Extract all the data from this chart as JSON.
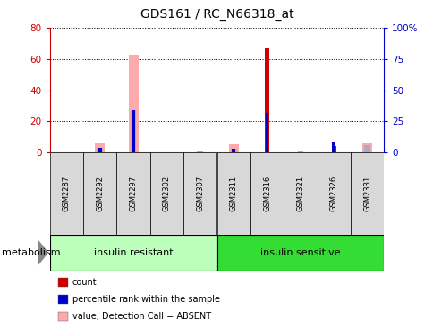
{
  "title": "GDS161 / RC_N66318_at",
  "samples": [
    "GSM2287",
    "GSM2292",
    "GSM2297",
    "GSM2302",
    "GSM2307",
    "GSM2311",
    "GSM2316",
    "GSM2321",
    "GSM2326",
    "GSM2331"
  ],
  "count_values": [
    0,
    0,
    0,
    0,
    0,
    0,
    67,
    0,
    4,
    0
  ],
  "rank_values": [
    0,
    4,
    34,
    0,
    0,
    3,
    32,
    0,
    8,
    0
  ],
  "absent_value_values": [
    0,
    6,
    63,
    0,
    0,
    5,
    0,
    0,
    0,
    6
  ],
  "absent_rank_values": [
    0,
    4,
    34,
    0,
    1,
    3,
    0,
    1,
    0,
    6
  ],
  "group1_label": "insulin resistant",
  "group2_label": "insulin sensitive",
  "ylim_left": [
    0,
    80
  ],
  "ylim_right": [
    0,
    100
  ],
  "yticks_left": [
    0,
    20,
    40,
    60,
    80
  ],
  "yticks_right": [
    0,
    25,
    50,
    75,
    100
  ],
  "ytick_labels_right": [
    "0",
    "25",
    "50",
    "75",
    "100%"
  ],
  "color_count": "#cc0000",
  "color_rank": "#0000cc",
  "color_absent_value": "#ffaaaa",
  "color_absent_rank": "#aaaacc",
  "color_group1_bg": "#bbffbb",
  "color_group2_bg": "#33dd33",
  "color_axis_left": "#cc0000",
  "color_axis_right": "#0000cc",
  "legend_items": [
    "count",
    "percentile rank within the sample",
    "value, Detection Call = ABSENT",
    "rank, Detection Call = ABSENT"
  ],
  "legend_colors": [
    "#cc0000",
    "#0000cc",
    "#ffaaaa",
    "#aaaacc"
  ]
}
